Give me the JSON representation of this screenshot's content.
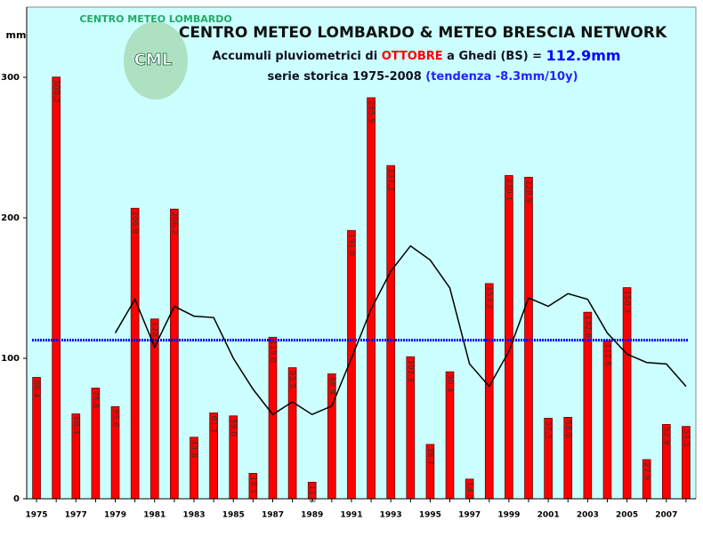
{
  "chart_data": {
    "type": "bar",
    "title": "CENTRO METEO LOMBARDO & METEO BRESCIA NETWORK",
    "subtitle_parts": [
      "Accumuli pluviometrici di ",
      "OTTOBRE",
      " a Ghedi (BS) = ",
      "112.9mm"
    ],
    "subtitle2_parts": [
      "serie storica 1975-2008 ",
      "(tendenza -8.3mm/10y)"
    ],
    "logo": {
      "ring": "CENTRO METEO LOMBARDO",
      "initials": "CML"
    },
    "y_axis_label": "mm",
    "categories": [
      "1975",
      null,
      "1977",
      null,
      "1979",
      null,
      "1981",
      null,
      "1983",
      null,
      "1985",
      null,
      "1987",
      null,
      "1989",
      null,
      "1991",
      null,
      "1993",
      null,
      "1995",
      null,
      "1997",
      null,
      "1999",
      null,
      "2001",
      null,
      "2003",
      null,
      "2005",
      null,
      "2007",
      null
    ],
    "values": [
      86.4,
      300.2,
      60.4,
      78.8,
      65.6,
      206.8,
      128.0,
      206.2,
      43.8,
      61.1,
      59.0,
      18.1,
      115.0,
      93.3,
      11.8,
      88.9,
      191.0,
      285.5,
      237.2,
      101.1,
      38.7,
      90.4,
      14.0,
      153.2,
      230.1,
      228.9,
      57.3,
      58.0,
      132.8,
      112.6,
      150.3,
      27.9,
      52.9,
      51.5
    ],
    "value_labels": [
      "86.4",
      "300.2",
      "60.4",
      "78.8",
      "65.6",
      "206.8",
      "128.0",
      "206.2",
      "43.8",
      "61.1",
      "59.0",
      "18.1",
      "115.0",
      "93.3",
      "11.8",
      "88.9",
      "191.0",
      "285.5",
      "237.2",
      "101.1",
      "38.7",
      "90.4",
      "14.0",
      "153.2",
      "230.1",
      "228.9",
      "57.3",
      "58.0",
      "132.8",
      "112.6",
      "150.3",
      "27.9",
      "52.9",
      "51.5"
    ],
    "color": "#ff0000",
    "moving_average": {
      "color": "#000000",
      "values": [
        null,
        null,
        null,
        null,
        118,
        142,
        108,
        137,
        130,
        129,
        100,
        78,
        60,
        69,
        60,
        66,
        100,
        135,
        162,
        180,
        170,
        150,
        96,
        80,
        105,
        143,
        137,
        146,
        142,
        118,
        103,
        97,
        96,
        80
      ]
    },
    "mean_line": {
      "value": 112.9,
      "color": "#0000ff"
    },
    "ylim": [
      0,
      350
    ],
    "yticks": [
      0,
      100,
      200,
      300
    ],
    "grid": false
  }
}
